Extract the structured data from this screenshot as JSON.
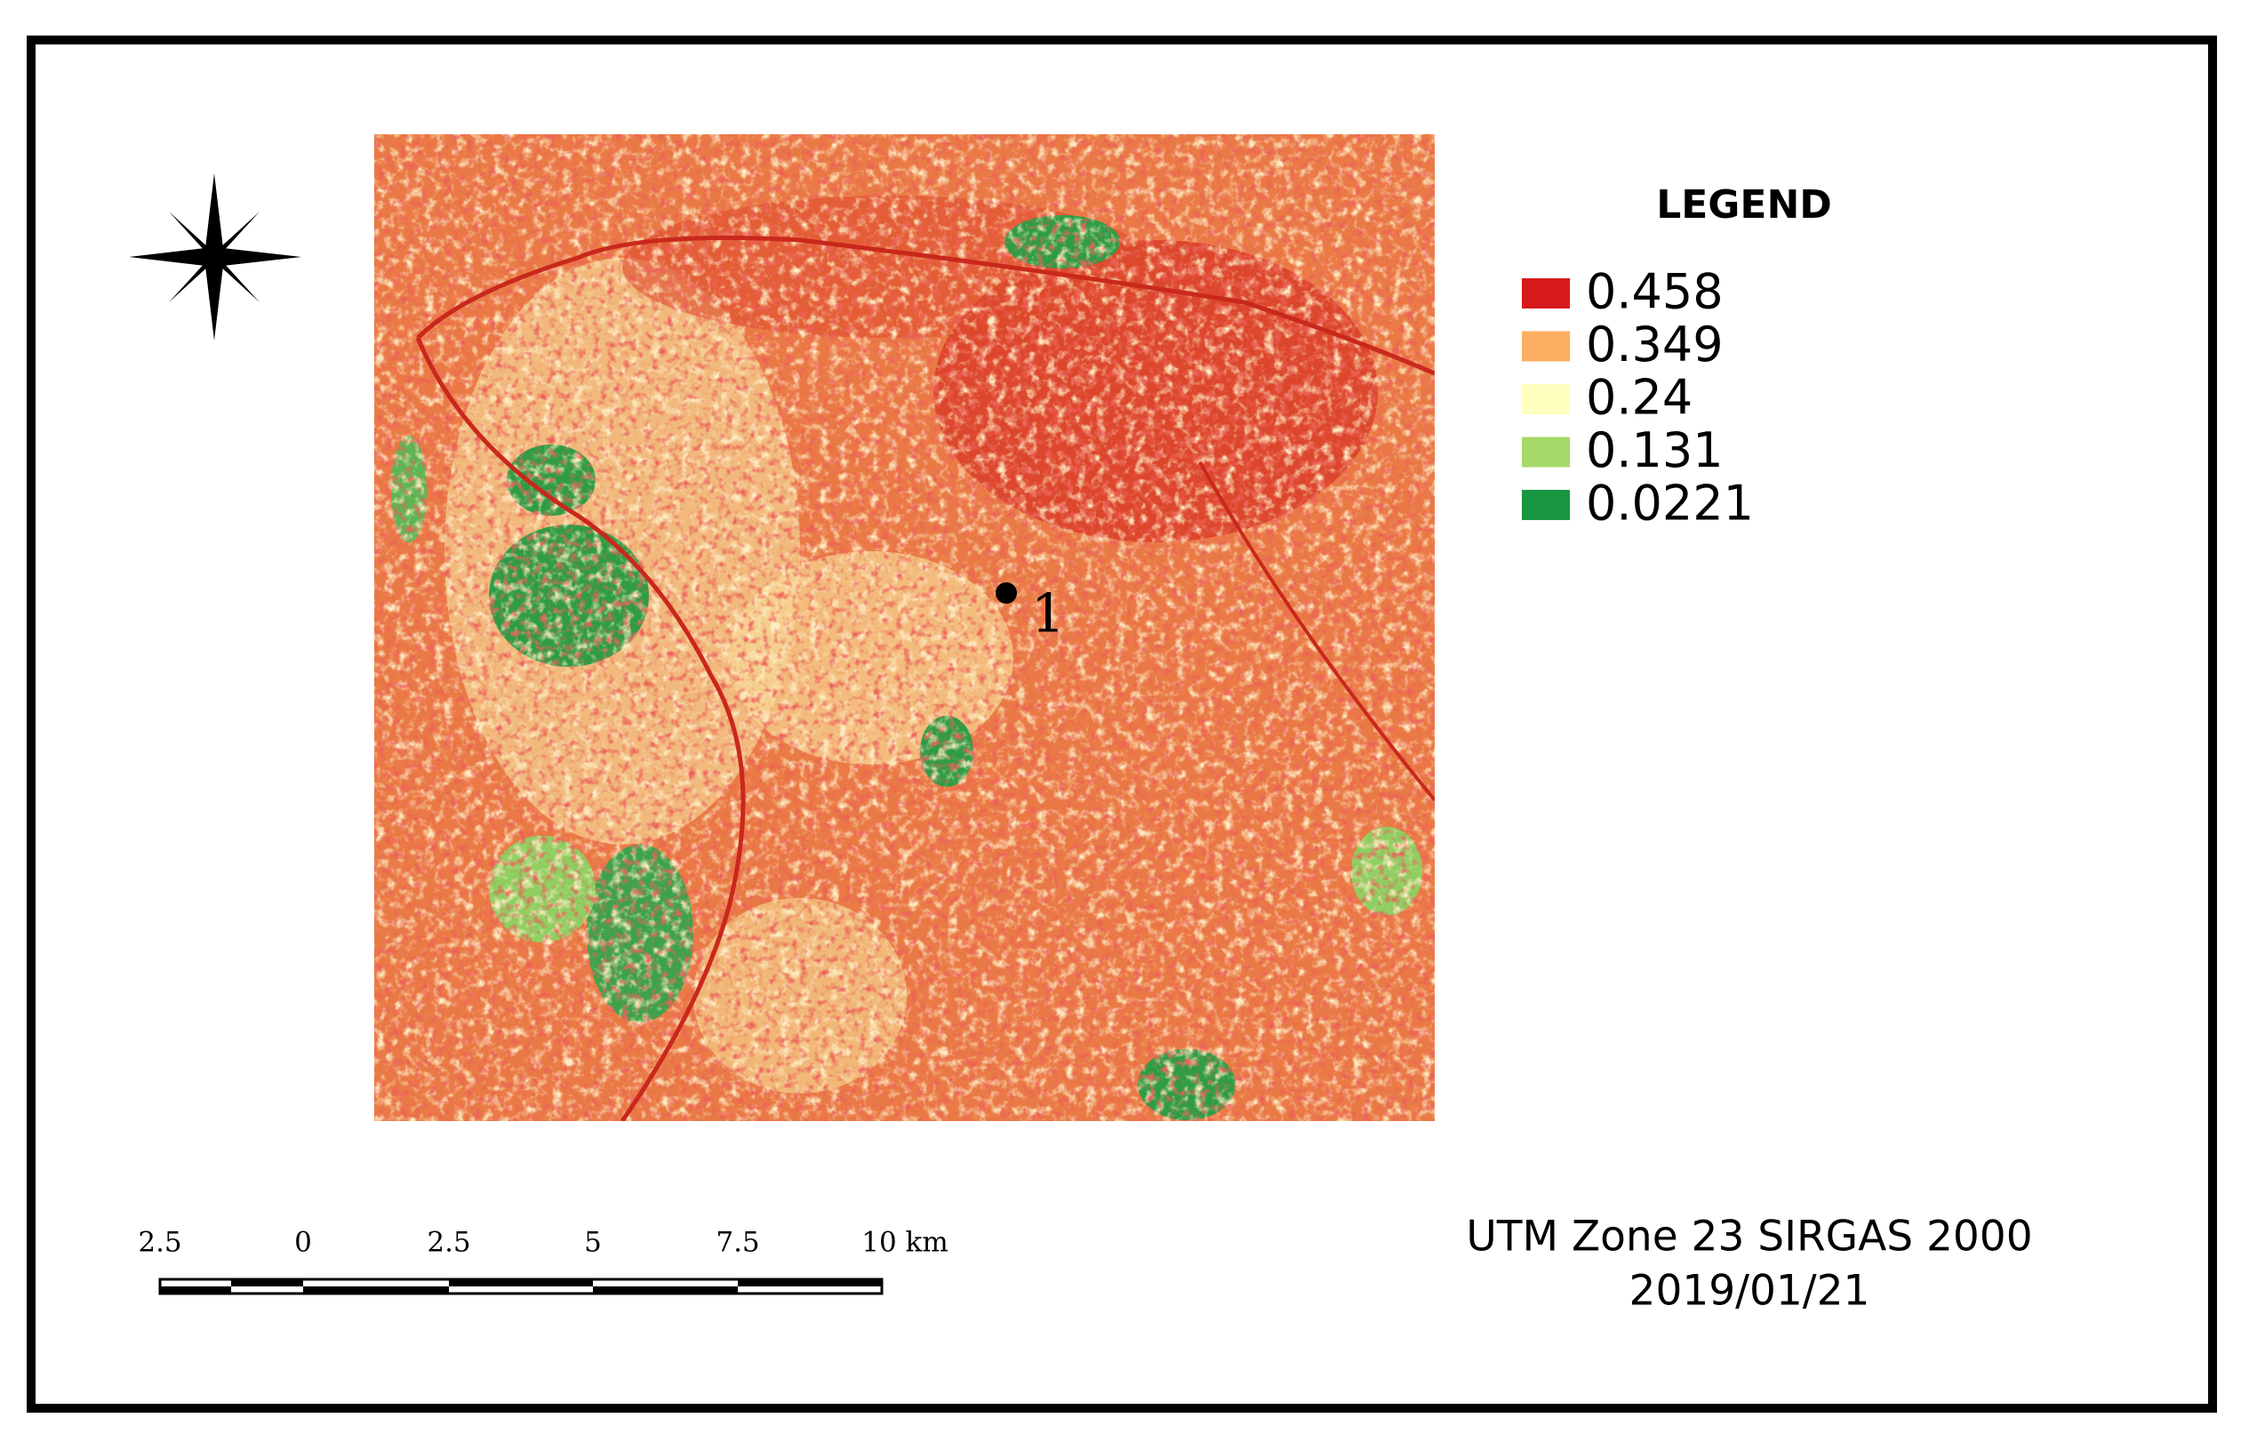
{
  "legend": {
    "title": "LEGEND",
    "items": [
      {
        "label": "0.458",
        "color": "#d7191c"
      },
      {
        "label": "0.349",
        "color": "#fdae61"
      },
      {
        "label": "0.24",
        "color": "#ffffc0"
      },
      {
        "label": "0.131",
        "color": "#a6d96a"
      },
      {
        "label": "0.0221",
        "color": "#1a9641"
      }
    ]
  },
  "scale_bar": {
    "labels": [
      "2.5",
      "0",
      "2.5",
      "5",
      "7.5",
      "10 km"
    ]
  },
  "map": {
    "point_label": "1"
  },
  "projection": "UTM Zone 23 SIRGAS 2000",
  "date": "2019/01/21"
}
